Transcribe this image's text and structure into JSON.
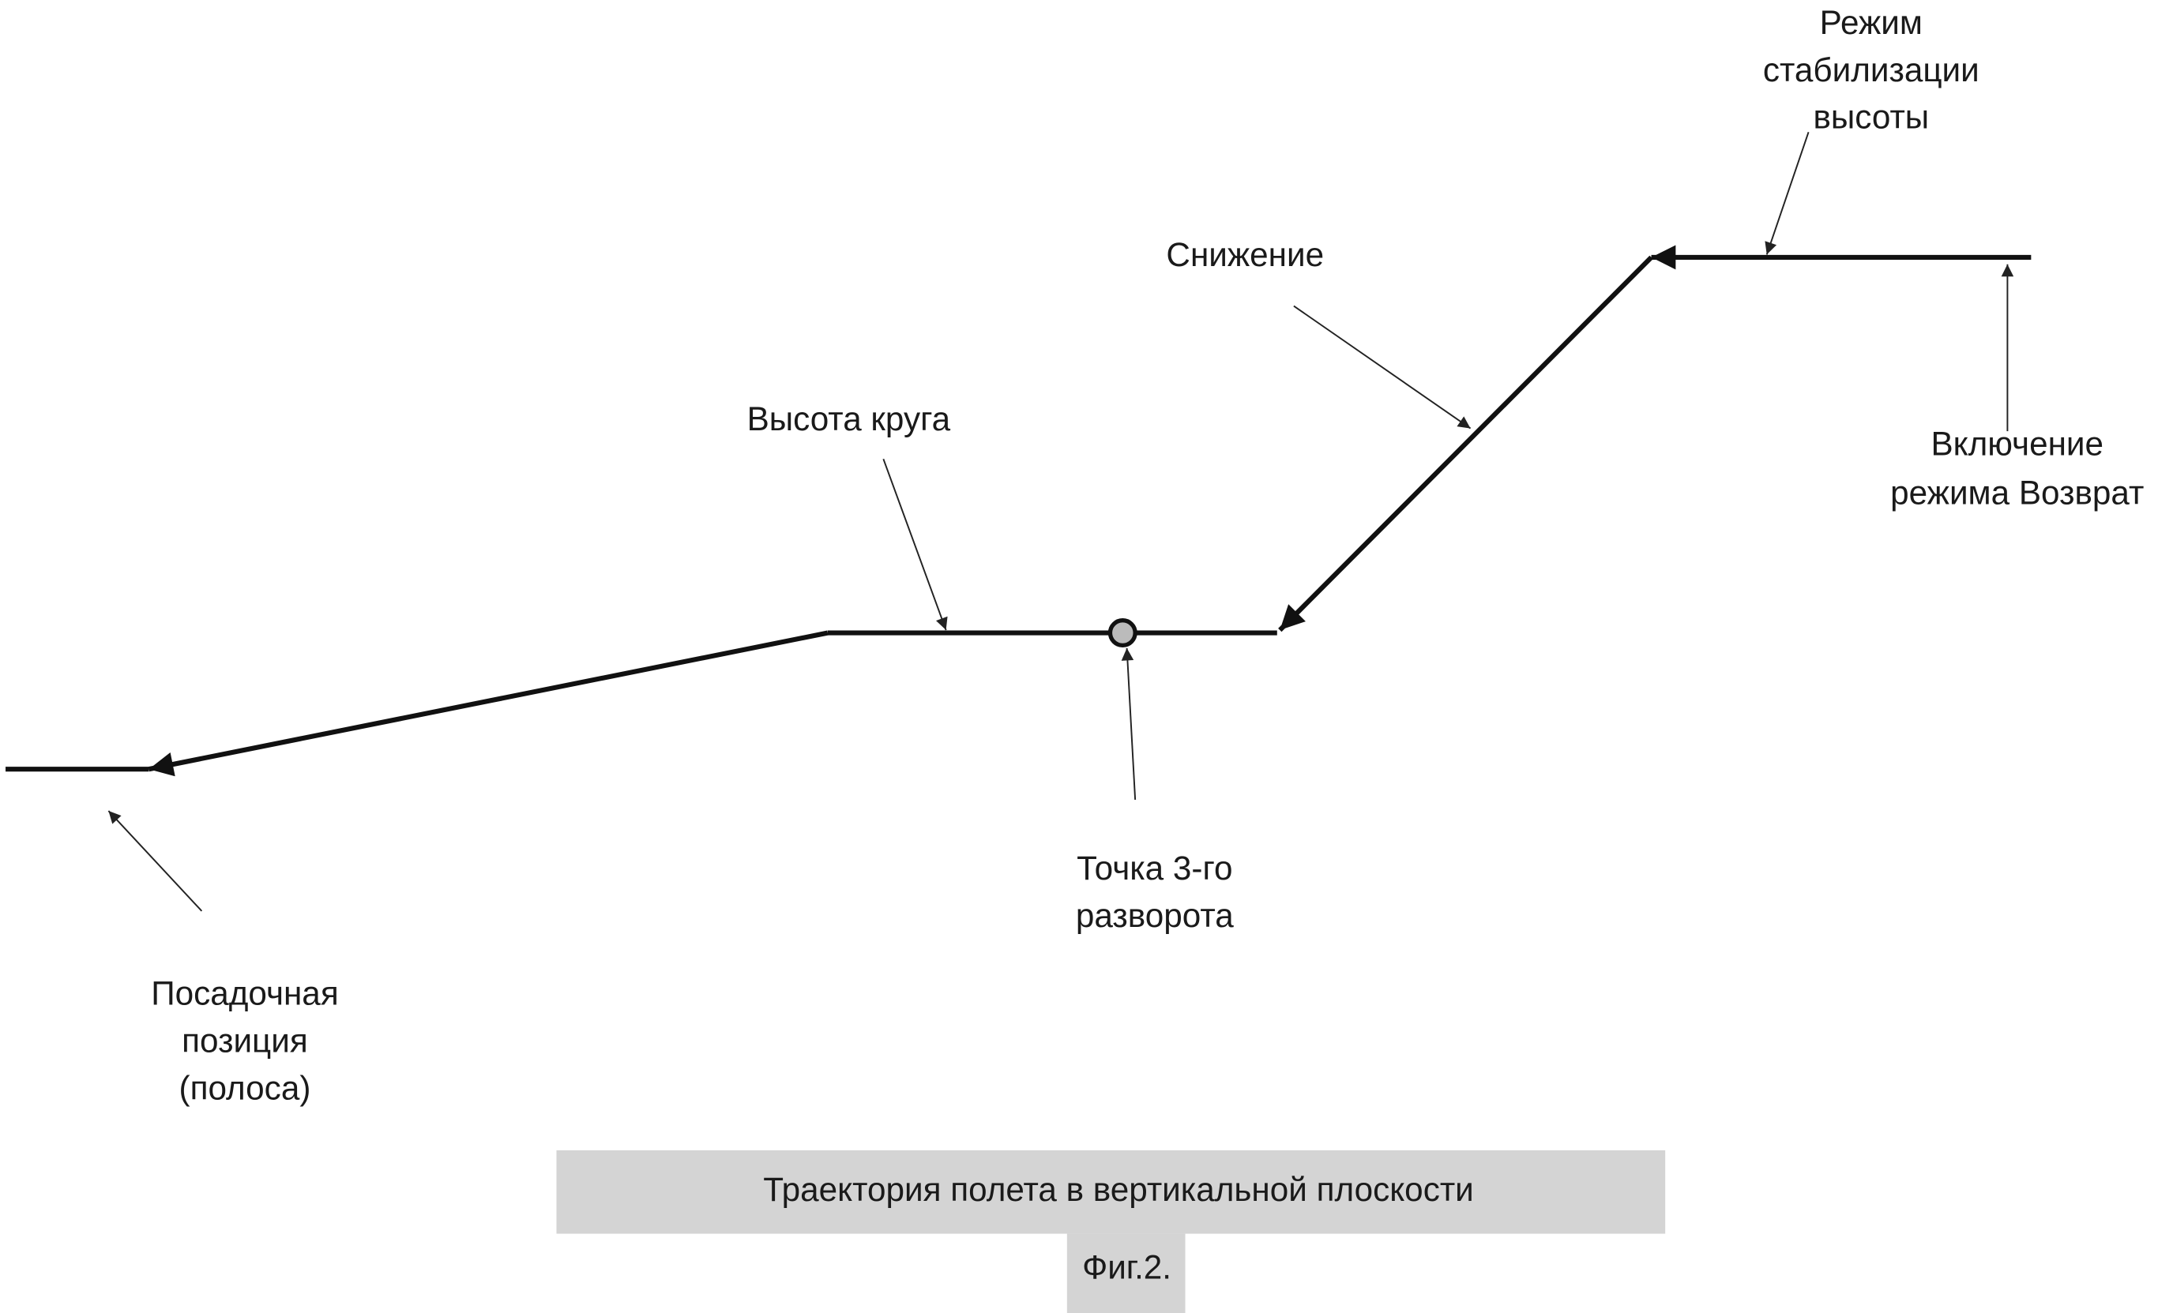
{
  "labels": [
    {
      "lines": [
        "Режим",
        "стабилизации",
        "высоты"
      ]
    },
    {
      "lines": [
        "Снижение"
      ]
    },
    {
      "lines": [
        "Высота круга"
      ]
    },
    {
      "lines": [
        "Включение",
        "режима Возврат"
      ]
    },
    {
      "lines": [
        "Точка 3-го",
        "разворота"
      ]
    },
    {
      "lines": [
        "Посадочная",
        "позиция",
        "(полоса)"
      ]
    }
  ],
  "caption": {
    "title": "Траектория полета в вертикальной плоскости",
    "figure": "Фиг.2."
  }
}
